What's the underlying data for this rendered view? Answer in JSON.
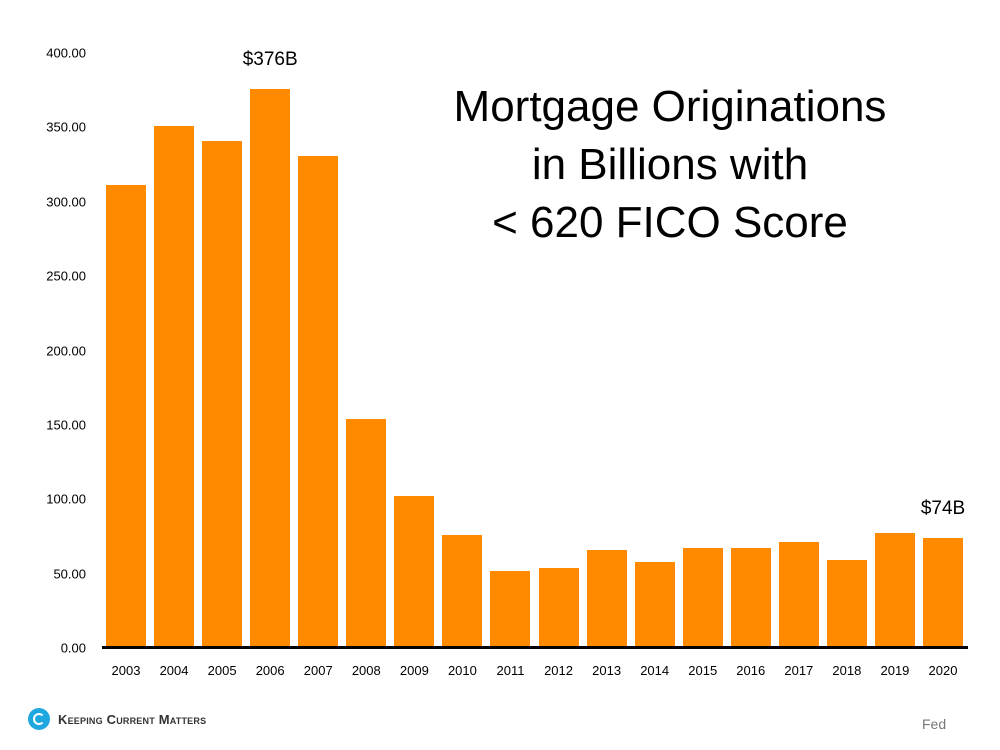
{
  "chart_data": {
    "type": "bar",
    "title": "Mortgage Originations in Billions with < 620 FICO Score",
    "title_lines": [
      "Mortgage Originations",
      "in Billions with",
      "< 620 FICO Score"
    ],
    "xlabel": "",
    "ylabel": "",
    "categories": [
      "2003",
      "2004",
      "2005",
      "2006",
      "2007",
      "2008",
      "2009",
      "2010",
      "2011",
      "2012",
      "2013",
      "2014",
      "2015",
      "2016",
      "2017",
      "2018",
      "2019",
      "2020"
    ],
    "values": [
      311,
      351,
      341,
      376,
      331,
      154,
      102,
      76,
      52,
      54,
      66,
      58,
      67,
      67,
      71,
      59,
      77,
      74
    ],
    "ylim": [
      0,
      400
    ],
    "yticks": [
      "0.00",
      "50.00",
      "100.00",
      "150.00",
      "200.00",
      "250.00",
      "300.00",
      "350.00",
      "400.00"
    ],
    "grid": false,
    "bar_color": "#FF8A00",
    "annotations": [
      {
        "category": "2006",
        "text": "$376B"
      },
      {
        "category": "2020",
        "text": "$74B"
      }
    ]
  },
  "footer": {
    "logo_text": "Keeping Current Matters",
    "source": "Fed"
  }
}
